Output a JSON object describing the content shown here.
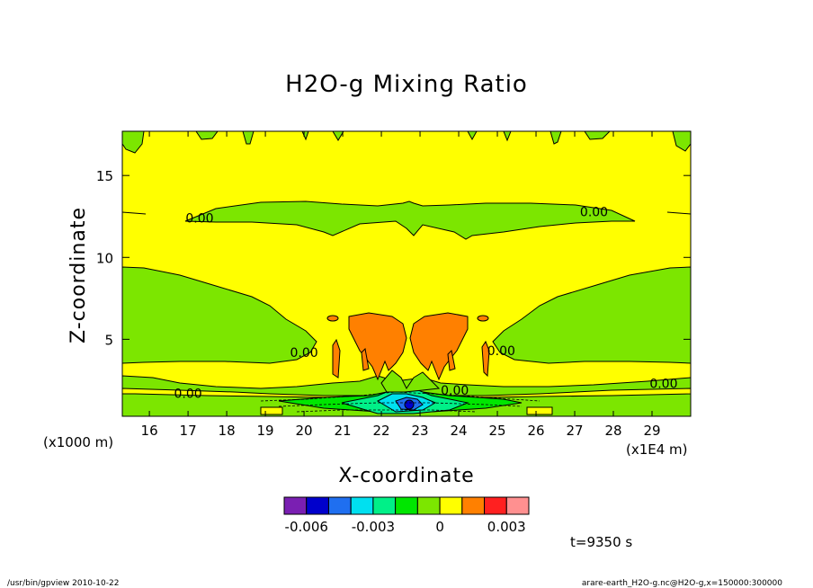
{
  "chart_data": {
    "type": "heatmap",
    "title": "H2O-g Mixing Ratio",
    "xlabel": "X-coordinate",
    "ylabel": "Z-coordinate",
    "xlim": [
      15.3,
      30.0
    ],
    "ylim": [
      0.3,
      17.7
    ],
    "x_ticks": [
      16,
      17,
      18,
      19,
      20,
      21,
      22,
      23,
      24,
      25,
      26,
      27,
      28,
      29
    ],
    "y_ticks": [
      5,
      10,
      15
    ],
    "x_scale_note": "(x1E4 m)",
    "y_scale_note": "(x1000 m)",
    "contour_labels": [
      {
        "text": "0.00",
        "x": 17.3,
        "z": 12.4
      },
      {
        "text": "0.00",
        "x": 27.5,
        "z": 12.8
      },
      {
        "text": "0.00",
        "x": 20.0,
        "z": 4.2
      },
      {
        "text": "0.00",
        "x": 25.1,
        "z": 4.3
      },
      {
        "text": "0.00",
        "x": 29.3,
        "z": 2.3
      },
      {
        "text": "0.00",
        "x": 17.0,
        "z": 1.7
      },
      {
        "text": "0.00",
        "x": 23.9,
        "z": 1.9
      }
    ],
    "colorbar": {
      "levels": [
        -0.007,
        -0.006,
        -0.005,
        -0.004,
        -0.003,
        -0.002,
        -0.001,
        0,
        0.001,
        0.002,
        0.003,
        0.004
      ],
      "colors": [
        "#7a1fb2",
        "#0000cc",
        "#1f6ff0",
        "#00e0f0",
        "#00f088",
        "#00e600",
        "#7ce600",
        "#ffff00",
        "#ff8000",
        "#ff2020",
        "#ff9090"
      ],
      "tick_labels": [
        "-0.006",
        "-0.003",
        "0",
        "0.003"
      ]
    }
  },
  "footer": {
    "time": "t=9350 s",
    "left": "/usr/bin/gpview   2010-10-22",
    "right": "arare-earth_H2O-g.nc@H2O-g,x=150000:300000"
  }
}
